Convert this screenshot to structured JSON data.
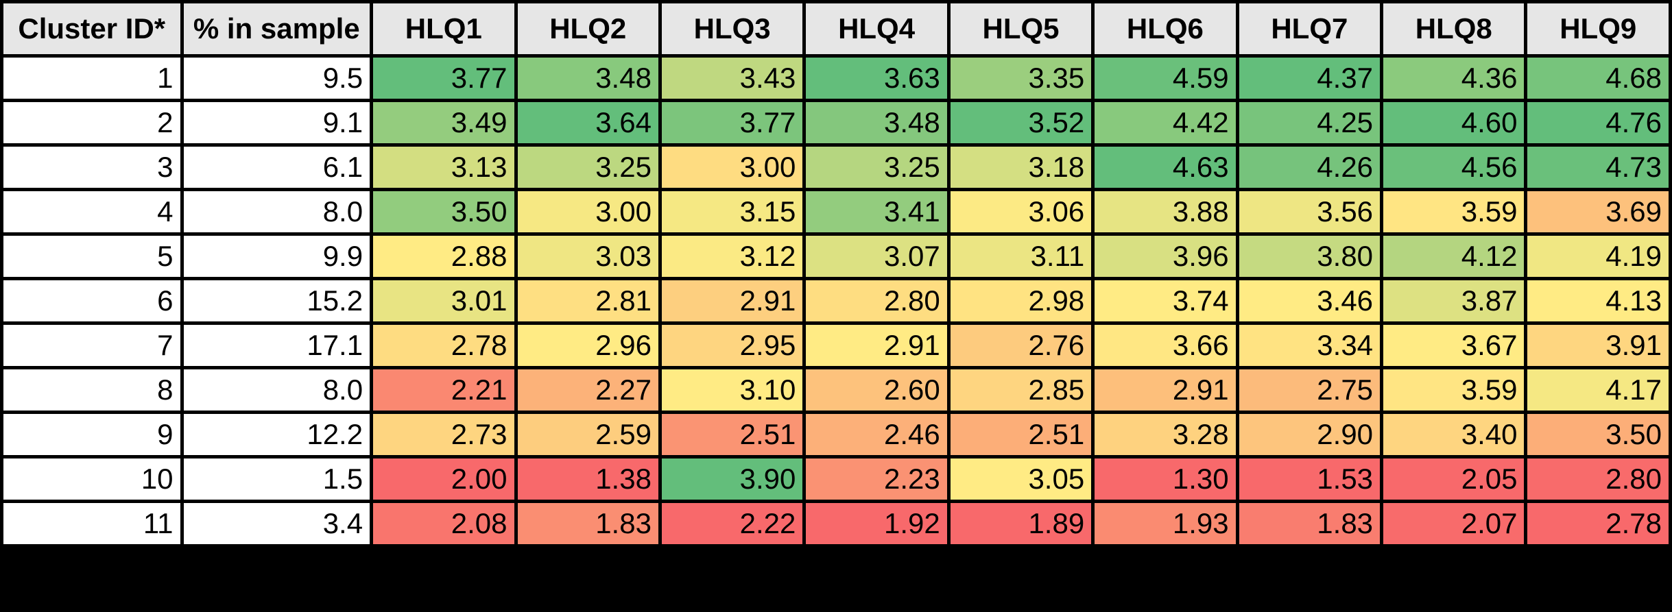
{
  "chart_data": {
    "type": "heatmap",
    "columns": [
      "Cluster ID*",
      "% in sample",
      "HLQ1",
      "HLQ2",
      "HLQ3",
      "HLQ4",
      "HLQ5",
      "HLQ6",
      "HLQ7",
      "HLQ8",
      "HLQ9"
    ],
    "rows": [
      {
        "cluster": "1",
        "pct": "9.5",
        "values": [
          "3.77",
          "3.48",
          "3.43",
          "3.63",
          "3.35",
          "4.59",
          "4.37",
          "4.36",
          "4.68"
        ]
      },
      {
        "cluster": "2",
        "pct": "9.1",
        "values": [
          "3.49",
          "3.64",
          "3.77",
          "3.48",
          "3.52",
          "4.42",
          "4.25",
          "4.60",
          "4.76"
        ]
      },
      {
        "cluster": "3",
        "pct": "6.1",
        "values": [
          "3.13",
          "3.25",
          "3.00",
          "3.25",
          "3.18",
          "4.63",
          "4.26",
          "4.56",
          "4.73"
        ]
      },
      {
        "cluster": "4",
        "pct": "8.0",
        "values": [
          "3.50",
          "3.00",
          "3.15",
          "3.41",
          "3.06",
          "3.88",
          "3.56",
          "3.59",
          "3.69"
        ]
      },
      {
        "cluster": "5",
        "pct": "9.9",
        "values": [
          "2.88",
          "3.03",
          "3.12",
          "3.07",
          "3.11",
          "3.96",
          "3.80",
          "4.12",
          "4.19"
        ]
      },
      {
        "cluster": "6",
        "pct": "15.2",
        "values": [
          "3.01",
          "2.81",
          "2.91",
          "2.80",
          "2.98",
          "3.74",
          "3.46",
          "3.87",
          "4.13"
        ]
      },
      {
        "cluster": "7",
        "pct": "17.1",
        "values": [
          "2.78",
          "2.96",
          "2.95",
          "2.91",
          "2.76",
          "3.66",
          "3.34",
          "3.67",
          "3.91"
        ]
      },
      {
        "cluster": "8",
        "pct": "8.0",
        "values": [
          "2.21",
          "2.27",
          "3.10",
          "2.60",
          "2.85",
          "2.91",
          "2.75",
          "3.59",
          "4.17"
        ]
      },
      {
        "cluster": "9",
        "pct": "12.2",
        "values": [
          "2.73",
          "2.59",
          "2.51",
          "2.46",
          "2.51",
          "3.28",
          "2.90",
          "3.40",
          "3.50"
        ]
      },
      {
        "cluster": "10",
        "pct": "1.5",
        "values": [
          "2.00",
          "1.38",
          "3.90",
          "2.23",
          "3.05",
          "1.30",
          "1.53",
          "2.05",
          "2.80"
        ]
      },
      {
        "cluster": "11",
        "pct": "3.4",
        "values": [
          "2.08",
          "1.83",
          "2.22",
          "1.92",
          "1.89",
          "1.93",
          "1.83",
          "2.07",
          "2.78"
        ]
      }
    ],
    "color_scale": {
      "low": "#f8696b",
      "mid": "#ffeb84",
      "high": "#63be7b"
    }
  }
}
